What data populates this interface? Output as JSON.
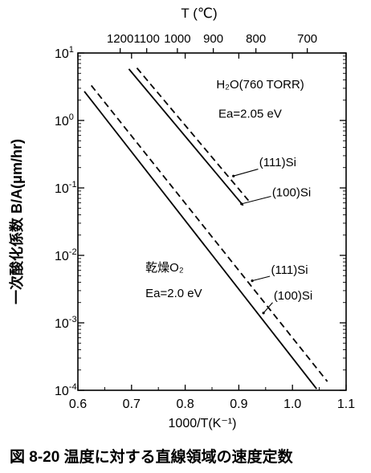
{
  "caption": "図 8-20 温度に対する直線領域の速度定数",
  "chart_data": {
    "type": "line",
    "xlabel": "1000/T(K⁻¹)",
    "ylabel": "一次酸化係数 B/A(μm/hr)",
    "top_axis_label": "T (℃)",
    "xlim": [
      0.6,
      1.1
    ],
    "ylim": [
      0.0001,
      10
    ],
    "yscale": "log",
    "x_ticks": [
      "0.6",
      "0.7",
      "0.8",
      "0.9",
      "1.0",
      "1.1"
    ],
    "y_ticks": [
      {
        "value": 10,
        "label": "10",
        "exp": "1"
      },
      {
        "value": 1,
        "label": "10",
        "exp": "0"
      },
      {
        "value": 0.1,
        "label": "10",
        "exp": "-1"
      },
      {
        "value": 0.01,
        "label": "10",
        "exp": "-2"
      },
      {
        "value": 0.001,
        "label": "10",
        "exp": "-3"
      },
      {
        "value": 0.0001,
        "label": "10",
        "exp": "-4"
      }
    ],
    "top_ticks": [
      {
        "label": "1200",
        "celsius": 1200
      },
      {
        "label": "1100",
        "celsius": 1100
      },
      {
        "label": "1000",
        "celsius": 1000
      },
      {
        "label": "900",
        "celsius": 900
      },
      {
        "label": "800",
        "celsius": 800
      },
      {
        "label": "700",
        "celsius": 700
      }
    ],
    "series": [
      {
        "name": "(111)Si",
        "group": "H₂O(760 TORR)",
        "dash": true,
        "x": [
          0.71,
          0.918
        ],
        "y": [
          6.0,
          0.065
        ]
      },
      {
        "name": "(100)Si",
        "group": "H₂O(760 TORR)",
        "dash": false,
        "x": [
          0.695,
          0.908
        ],
        "y": [
          5.8,
          0.055
        ]
      },
      {
        "name": "(111)Si",
        "group": "乾燥O₂",
        "dash": true,
        "x": [
          0.625,
          1.065
        ],
        "y": [
          3.3,
          0.000135
        ]
      },
      {
        "name": "(100)Si",
        "group": "乾燥O₂",
        "dash": false,
        "x": [
          0.612,
          1.045
        ],
        "y": [
          2.7,
          0.000105
        ]
      }
    ],
    "annotations": [
      {
        "text": "H₂O(760 TORR)",
        "x": 0.858,
        "y": 3.0
      },
      {
        "text": "Ea=2.05 eV",
        "x": 0.862,
        "y": 1.1
      },
      {
        "text": "(111)Si",
        "x": 0.938,
        "y": 0.21
      },
      {
        "text": "(100)Si",
        "x": 0.962,
        "y": 0.075
      },
      {
        "text": "乾燥O₂",
        "x": 0.726,
        "y": 0.0058
      },
      {
        "text": "Ea=2.0 eV",
        "x": 0.726,
        "y": 0.0024
      },
      {
        "text": "(111)Si",
        "x": 0.96,
        "y": 0.0053
      },
      {
        "text": "(100)Si",
        "x": 0.965,
        "y": 0.0022
      }
    ]
  }
}
